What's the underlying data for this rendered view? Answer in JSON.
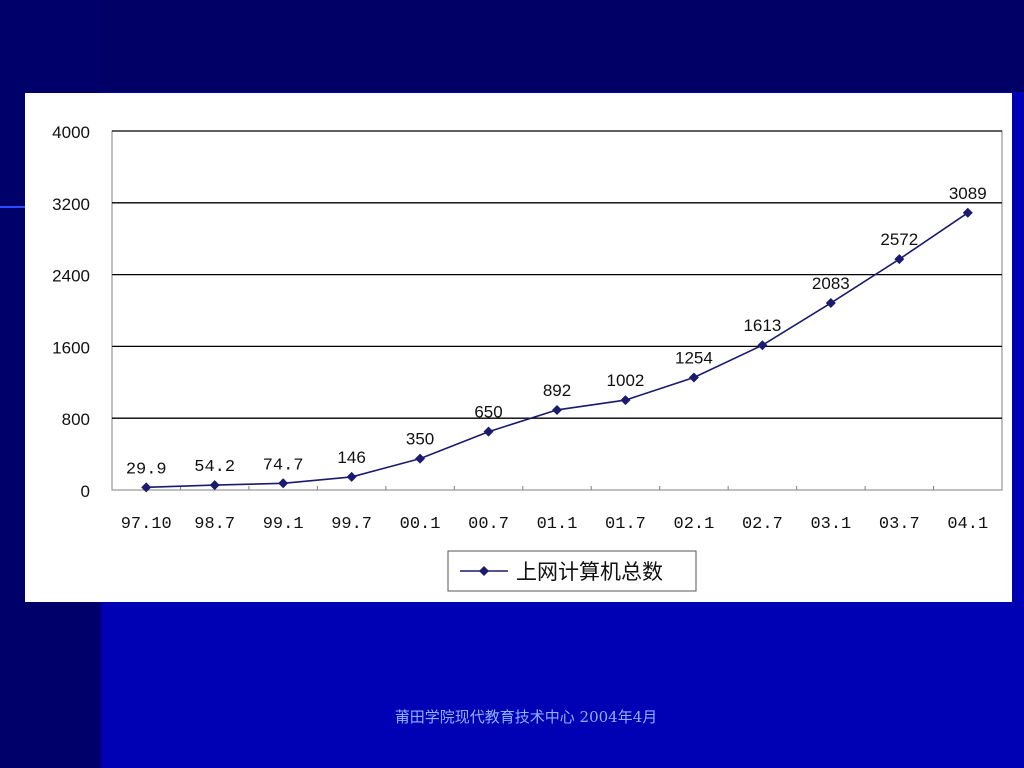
{
  "colors": {
    "background": "#0000b4",
    "panel": "#ffffff",
    "series": "#1a1a6e",
    "footer_text": "#8fb0ff"
  },
  "footer": {
    "text": "莆田学院现代教育技术中心 2004年4月"
  },
  "chart_data": {
    "type": "line",
    "title": "",
    "xlabel": "",
    "ylabel": "",
    "ylim": [
      0,
      4000
    ],
    "yticks": [
      "0",
      "800",
      "1600",
      "2400",
      "3200",
      "4000"
    ],
    "categories": [
      "97.10",
      "98.7",
      "99.1",
      "99.7",
      "00.1",
      "00.7",
      "01.1",
      "01.7",
      "02.1",
      "02.7",
      "03.1",
      "03.7",
      "04.1"
    ],
    "series": [
      {
        "name": "上网计算机总数",
        "values": [
          29.9,
          54.2,
          74.7,
          146,
          350,
          650,
          892,
          1002,
          1254,
          1613,
          2083,
          2572,
          3089
        ],
        "labels": [
          "29.9",
          "54.2",
          "74.7",
          "146",
          "350",
          "650",
          "892",
          "1002",
          "1254",
          "1613",
          "2083",
          "2572",
          "3089"
        ],
        "marker": "diamond"
      }
    ],
    "grid": true,
    "legend": "bottom"
  }
}
